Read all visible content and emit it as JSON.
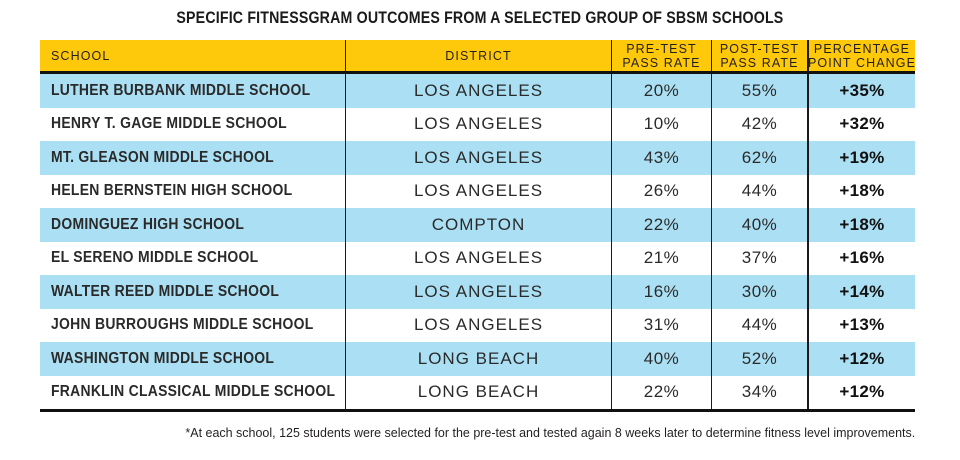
{
  "title": "SPECIFIC FITNESSGRAM OUTCOMES FROM A SELECTED GROUP OF SBSM SCHOOLS",
  "table": {
    "headers": [
      {
        "line1": "SCHOOL",
        "line2": ""
      },
      {
        "line1": "DISTRICT",
        "line2": ""
      },
      {
        "line1": "PRE-TEST",
        "line2": "PASS RATE"
      },
      {
        "line1": "POST-TEST",
        "line2": "PASS RATE"
      },
      {
        "line1": "PERCENTAGE",
        "line2": "POINT CHANGE"
      }
    ],
    "rows": [
      {
        "school": "LUTHER BURBANK MIDDLE SCHOOL",
        "district": "LOS ANGELES",
        "pre": "20%",
        "post": "55%",
        "change": "+35%"
      },
      {
        "school": "HENRY T. GAGE MIDDLE SCHOOL",
        "district": "LOS ANGELES",
        "pre": "10%",
        "post": "42%",
        "change": "+32%"
      },
      {
        "school": "MT. GLEASON MIDDLE SCHOOL",
        "district": "LOS ANGELES",
        "pre": "43%",
        "post": "62%",
        "change": "+19%"
      },
      {
        "school": "HELEN BERNSTEIN HIGH SCHOOL",
        "district": "LOS ANGELES",
        "pre": "26%",
        "post": "44%",
        "change": "+18%"
      },
      {
        "school": "DOMINGUEZ HIGH SCHOOL",
        "district": "COMPTON",
        "pre": "22%",
        "post": "40%",
        "change": "+18%"
      },
      {
        "school": "EL SERENO MIDDLE SCHOOL",
        "district": "LOS ANGELES",
        "pre": "21%",
        "post": "37%",
        "change": "+16%"
      },
      {
        "school": "WALTER REED MIDDLE SCHOOL",
        "district": "LOS ANGELES",
        "pre": "16%",
        "post": "30%",
        "change": "+14%"
      },
      {
        "school": "JOHN BURROUGHS MIDDLE SCHOOL",
        "district": "LOS ANGELES",
        "pre": "31%",
        "post": "44%",
        "change": "+13%"
      },
      {
        "school": "WASHINGTON MIDDLE SCHOOL",
        "district": "LONG BEACH",
        "pre": "40%",
        "post": "52%",
        "change": "+12%"
      },
      {
        "school": "FRANKLIN CLASSICAL MIDDLE SCHOOL",
        "district": "LONG BEACH",
        "pre": "22%",
        "post": "34%",
        "change": "+12%"
      }
    ]
  },
  "footnote": "*At each school, 125 students were selected for the pre-test and tested again 8 weeks later to determine fitness level improvements.",
  "colors": {
    "header_bg": "#FFC90B",
    "row_stripe": "#ABE0F4",
    "text_dark": "#231F20",
    "rule_black": "#111111"
  },
  "chart_data": {
    "type": "table",
    "title": "SPECIFIC FITNESSGRAM OUTCOMES FROM A SELECTED GROUP OF SBSM SCHOOLS",
    "columns": [
      "SCHOOL",
      "DISTRICT",
      "PRE-TEST PASS RATE",
      "POST-TEST PASS RATE",
      "PERCENTAGE POINT CHANGE"
    ],
    "rows": [
      {
        "school": "LUTHER BURBANK MIDDLE SCHOOL",
        "district": "LOS ANGELES",
        "pre_test_pass_rate": 20,
        "post_test_pass_rate": 55,
        "percentage_point_change": 35
      },
      {
        "school": "HENRY T. GAGE MIDDLE SCHOOL",
        "district": "LOS ANGELES",
        "pre_test_pass_rate": 10,
        "post_test_pass_rate": 42,
        "percentage_point_change": 32
      },
      {
        "school": "MT. GLEASON MIDDLE SCHOOL",
        "district": "LOS ANGELES",
        "pre_test_pass_rate": 43,
        "post_test_pass_rate": 62,
        "percentage_point_change": 19
      },
      {
        "school": "HELEN BERNSTEIN HIGH SCHOOL",
        "district": "LOS ANGELES",
        "pre_test_pass_rate": 26,
        "post_test_pass_rate": 44,
        "percentage_point_change": 18
      },
      {
        "school": "DOMINGUEZ HIGH SCHOOL",
        "district": "COMPTON",
        "pre_test_pass_rate": 22,
        "post_test_pass_rate": 40,
        "percentage_point_change": 18
      },
      {
        "school": "EL SERENO MIDDLE SCHOOL",
        "district": "LOS ANGELES",
        "pre_test_pass_rate": 21,
        "post_test_pass_rate": 37,
        "percentage_point_change": 16
      },
      {
        "school": "WALTER REED MIDDLE SCHOOL",
        "district": "LOS ANGELES",
        "pre_test_pass_rate": 16,
        "post_test_pass_rate": 30,
        "percentage_point_change": 14
      },
      {
        "school": "JOHN BURROUGHS MIDDLE SCHOOL",
        "district": "LOS ANGELES",
        "pre_test_pass_rate": 31,
        "post_test_pass_rate": 44,
        "percentage_point_change": 13
      },
      {
        "school": "WASHINGTON MIDDLE SCHOOL",
        "district": "LONG BEACH",
        "pre_test_pass_rate": 40,
        "post_test_pass_rate": 52,
        "percentage_point_change": 12
      },
      {
        "school": "FRANKLIN CLASSICAL MIDDLE SCHOOL",
        "district": "LONG BEACH",
        "pre_test_pass_rate": 22,
        "post_test_pass_rate": 34,
        "percentage_point_change": 12
      }
    ],
    "footnote": "*At each school, 125 students were selected for the pre-test and tested again 8 weeks later to determine fitness level improvements."
  }
}
